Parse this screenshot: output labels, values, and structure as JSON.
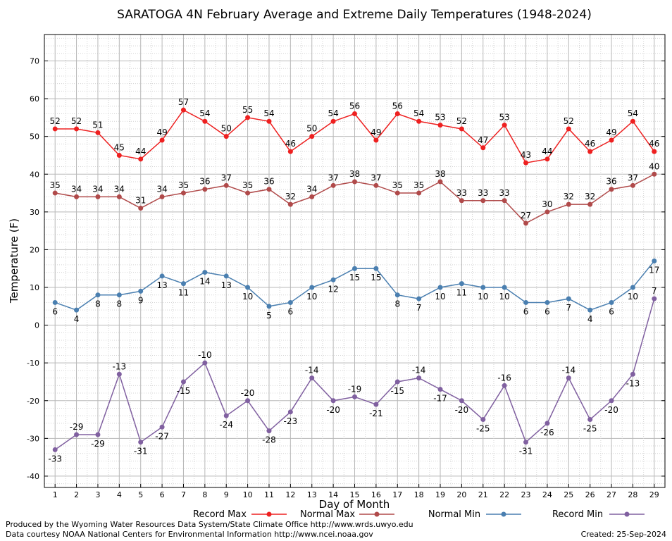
{
  "chart_data": {
    "type": "line",
    "title": "SARATOGA 4N February Average and Extreme Daily Temperatures (1948-2024)",
    "xlabel": "Day of Month",
    "ylabel": "Temperature (F)",
    "ylim": [
      -43,
      77
    ],
    "yticks": [
      -40,
      -30,
      -20,
      -10,
      0,
      10,
      20,
      30,
      40,
      50,
      60,
      70
    ],
    "x": [
      1,
      2,
      3,
      4,
      5,
      6,
      7,
      8,
      9,
      10,
      11,
      12,
      13,
      14,
      15,
      16,
      17,
      18,
      19,
      20,
      21,
      22,
      23,
      24,
      25,
      26,
      27,
      28,
      29
    ],
    "grid": true,
    "legend_position": "bottom",
    "series": [
      {
        "name": "Record Max",
        "color": "#ee2020",
        "values": [
          52,
          52,
          51,
          45,
          44,
          49,
          57,
          54,
          50,
          55,
          54,
          46,
          50,
          54,
          56,
          49,
          56,
          54,
          53,
          52,
          47,
          53,
          43,
          44,
          52,
          46,
          49,
          54,
          46
        ]
      },
      {
        "name": "Normal Max",
        "color": "#b04a4a",
        "values": [
          35,
          34,
          34,
          34,
          31,
          34,
          35,
          36,
          37,
          35,
          36,
          32,
          34,
          37,
          38,
          37,
          35,
          35,
          38,
          33,
          33,
          33,
          27,
          30,
          32,
          32,
          36,
          37,
          40
        ]
      },
      {
        "name": "Normal Min",
        "color": "#4a7fb0",
        "values": [
          6,
          4,
          8,
          8,
          9,
          13,
          11,
          14,
          13,
          10,
          5,
          6,
          10,
          12,
          15,
          15,
          8,
          7,
          10,
          11,
          10,
          10,
          6,
          6,
          7,
          4,
          6,
          10,
          17
        ]
      },
      {
        "name": "Record Min",
        "color": "#8060a0",
        "values": [
          -33,
          -29,
          -29,
          -13,
          -31,
          -27,
          -15,
          -10,
          -24,
          -20,
          -28,
          -23,
          -14,
          -20,
          -19,
          -21,
          -15,
          -14,
          -17,
          -20,
          -25,
          -16,
          -31,
          -26,
          -14,
          -25,
          -20,
          -13,
          7
        ]
      }
    ]
  },
  "footer": {
    "produced_by": "Produced by the Wyoming Water Resources Data System/State Climate Office http://www.wrds.uwyo.edu",
    "courtesy": "Data courtesy NOAA National Centers for Environmental Information http://www.ncei.noaa.gov",
    "created": "Created:  25-Sep-2024"
  }
}
